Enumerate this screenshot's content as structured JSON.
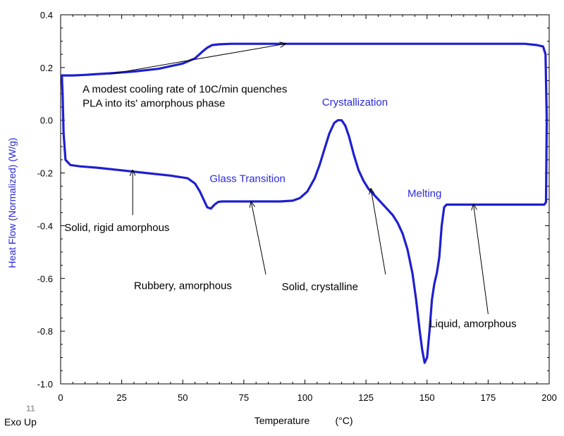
{
  "chart_data": {
    "type": "line",
    "xlabel": "Temperature",
    "xunit": "(°C)",
    "ylabel": "Heat Flow (Normalized)  (W/g)",
    "xlim": [
      0,
      200
    ],
    "ylim": [
      -1.0,
      0.4
    ],
    "x_ticks": [
      "0",
      "25",
      "50",
      "75",
      "100",
      "125",
      "150",
      "175",
      "200"
    ],
    "x_tick_values": [
      0,
      25,
      50,
      75,
      100,
      125,
      150,
      175,
      200
    ],
    "y_ticks": [
      "0.4",
      "0.2",
      "0.0",
      "-0.2",
      "-0.4",
      "-0.6",
      "-0.8",
      "-1.0"
    ],
    "y_tick_values": [
      0.4,
      0.2,
      0.0,
      -0.2,
      -0.4,
      -0.6,
      -0.8,
      -1.0
    ],
    "line_color": "#1f1fd0",
    "series": [
      {
        "x": [
          0.5,
          0.8,
          1.2,
          2,
          4,
          8,
          15,
          25,
          35,
          45,
          52,
          55,
          57,
          58.5,
          60,
          61.5,
          63,
          64.5,
          66,
          70,
          80,
          90,
          95,
          98,
          101,
          104,
          106,
          108,
          110,
          112,
          113.5,
          115,
          116.5,
          118,
          120,
          122,
          124,
          126,
          128,
          130,
          133,
          136,
          138,
          140,
          142,
          144,
          145.5,
          147,
          148,
          149,
          150,
          151,
          152,
          153,
          154,
          155,
          156,
          157,
          158,
          160,
          170,
          180,
          190,
          198,
          198.7
        ],
        "y": [
          0.17,
          0.1,
          -0.05,
          -0.15,
          -0.17,
          -0.175,
          -0.18,
          -0.19,
          -0.2,
          -0.21,
          -0.22,
          -0.24,
          -0.27,
          -0.3,
          -0.33,
          -0.335,
          -0.32,
          -0.31,
          -0.308,
          -0.308,
          -0.308,
          -0.308,
          -0.305,
          -0.295,
          -0.27,
          -0.22,
          -0.17,
          -0.11,
          -0.05,
          -0.01,
          0.0,
          0.0,
          -0.02,
          -0.06,
          -0.13,
          -0.19,
          -0.23,
          -0.26,
          -0.28,
          -0.3,
          -0.33,
          -0.36,
          -0.39,
          -0.43,
          -0.49,
          -0.58,
          -0.68,
          -0.8,
          -0.87,
          -0.92,
          -0.9,
          -0.8,
          -0.68,
          -0.62,
          -0.58,
          -0.52,
          -0.4,
          -0.33,
          -0.32,
          -0.32,
          -0.32,
          -0.32,
          -0.32,
          -0.32,
          -0.31
        ]
      },
      {
        "x": [
          198.7,
          199,
          198.5,
          197.5,
          195,
          190,
          180,
          160,
          140,
          120,
          100,
          80,
          70,
          65,
          62,
          60,
          58,
          55,
          50,
          40,
          30,
          20,
          10,
          5,
          2,
          0.5
        ],
        "y": [
          -0.31,
          0.0,
          0.25,
          0.28,
          0.285,
          0.29,
          0.29,
          0.29,
          0.29,
          0.29,
          0.29,
          0.29,
          0.29,
          0.288,
          0.285,
          0.275,
          0.26,
          0.235,
          0.215,
          0.195,
          0.185,
          0.178,
          0.172,
          0.17,
          0.17,
          0.17
        ]
      }
    ],
    "region_labels": [
      {
        "text": "Glass Transition",
        "x": 61,
        "y": -0.235
      },
      {
        "text": "Crystallization",
        "x": 107,
        "y": 0.055
      },
      {
        "text": "Melting",
        "x": 142,
        "y": -0.29
      }
    ],
    "annotations": [
      {
        "lines": [
          "A modest cooling rate of 10C/min quenches",
          "PLA into its' amorphous phase"
        ],
        "text_x": 9,
        "text_y": 0.105,
        "arrow_from": [
          20,
          0.175
        ],
        "arrow_to": [
          92,
          0.29
        ]
      },
      {
        "lines": [
          "Solid, rigid amorphous"
        ],
        "text_x": 1.5,
        "text_y": -0.42,
        "arrow_from": [
          29.5,
          -0.36
        ],
        "arrow_to": [
          29.5,
          -0.19
        ]
      },
      {
        "lines": [
          "Rubbery, amorphous"
        ],
        "text_x": 30,
        "text_y": -0.64,
        "arrow_from": [
          84,
          -0.585
        ],
        "arrow_to": [
          78,
          -0.31
        ]
      },
      {
        "lines": [
          "Solid, crystalline"
        ],
        "text_x": 90.5,
        "text_y": -0.645,
        "arrow_from": [
          133,
          -0.585
        ],
        "arrow_to": [
          127,
          -0.26
        ]
      },
      {
        "lines": [
          "Liquid, amorphous"
        ],
        "text_x": 151,
        "text_y": -0.785,
        "arrow_from": [
          175,
          -0.735
        ],
        "arrow_to": [
          169,
          -0.32
        ]
      }
    ]
  },
  "footer": {
    "slide_number": "11",
    "exo_label": "Exo Up"
  }
}
